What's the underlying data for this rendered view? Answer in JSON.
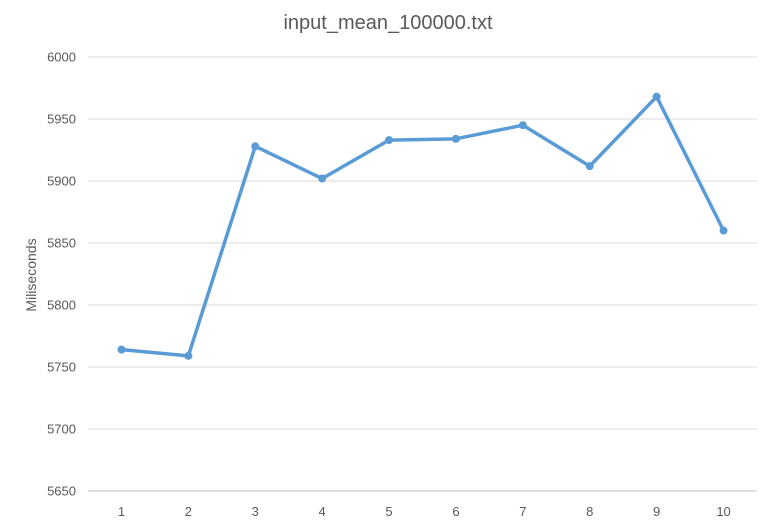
{
  "chart_data": {
    "type": "line",
    "title": "input_mean_100000.txt",
    "xlabel": "",
    "ylabel": "Miliseconds",
    "categories": [
      "1",
      "2",
      "3",
      "4",
      "5",
      "6",
      "7",
      "8",
      "9",
      "10"
    ],
    "series": [
      {
        "values": [
          5764,
          5759,
          5928,
          5902,
          5933,
          5934,
          5945,
          5912,
          5968,
          5860
        ]
      }
    ],
    "ylim": [
      5650,
      6000
    ],
    "yticks": [
      "5650",
      "5700",
      "5750",
      "5800",
      "5850",
      "5900",
      "5950",
      "6000"
    ],
    "grid": true,
    "legend": "none",
    "colors": {
      "series": "#5b9bd5"
    }
  }
}
